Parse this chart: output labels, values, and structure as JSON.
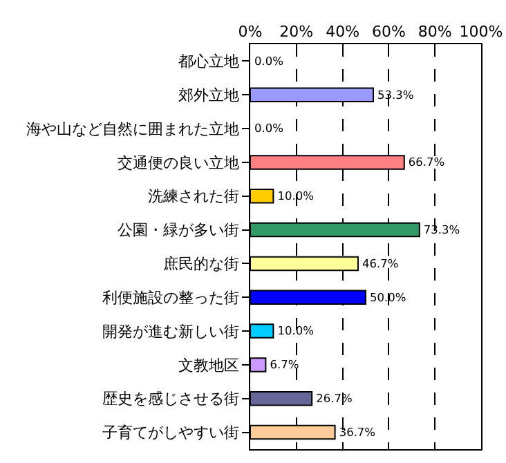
{
  "chart_data": {
    "type": "bar",
    "orientation": "horizontal",
    "categories": [
      "都心立地",
      "郊外立地",
      "海や山など自然に囲まれた立地",
      "交通便の良い立地",
      "洗練された街",
      "公園・緑が多い街",
      "庶民的な街",
      "利便施設の整った街",
      "開発が進む新しい街",
      "文教地区",
      "歴史を感じさせる街",
      "子育てがしやすい街"
    ],
    "values": [
      0,
      53.3,
      0,
      66.7,
      10,
      73.3,
      46.7,
      50,
      10,
      6.7,
      26.7,
      36.7
    ],
    "value_labels": [
      "0.0%",
      "53.3%",
      "0.0%",
      "66.7%",
      "10.0%",
      "73.3%",
      "46.7%",
      "50.0%",
      "10.0%",
      "6.7%",
      "26.7%",
      "36.7%"
    ],
    "colors": [
      "#9999ff",
      "#9999ff",
      "#9999ff",
      "#ff8080",
      "#ffcc00",
      "#339966",
      "#ffff99",
      "#0000ff",
      "#00ccff",
      "#cc99ff",
      "#666699",
      "#ffcc99"
    ],
    "xlim": [
      0,
      100
    ],
    "xticks": [
      {
        "value": 0,
        "label": "0%"
      },
      {
        "value": 20,
        "label": "20%"
      },
      {
        "value": 40,
        "label": "40%"
      },
      {
        "value": 60,
        "label": "60%"
      },
      {
        "value": 80,
        "label": "80%"
      },
      {
        "value": 100,
        "label": "100%"
      }
    ],
    "grid": "x"
  }
}
